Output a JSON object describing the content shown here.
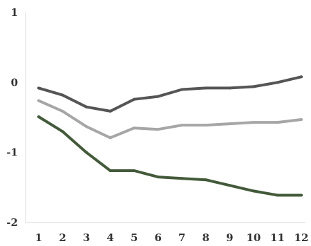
{
  "chart_data": {
    "type": "line",
    "title": "",
    "xlabel": "",
    "ylabel": "",
    "x": [
      1,
      2,
      3,
      4,
      5,
      6,
      7,
      8,
      9,
      10,
      11,
      12
    ],
    "x_tick_labels": [
      "1",
      "2",
      "3",
      "4",
      "5",
      "6",
      "7",
      "8",
      "9",
      "10",
      "11",
      "12"
    ],
    "y_ticks": [
      1,
      0,
      -1,
      -2
    ],
    "y_tick_labels": [
      "1",
      "0",
      "-1",
      "-2"
    ],
    "ylim": [
      -2,
      1
    ],
    "grid": false,
    "legend": "none",
    "series": [
      {
        "color": "#555555",
        "values": [
          -0.08,
          -0.18,
          -0.35,
          -0.41,
          -0.24,
          -0.2,
          -0.1,
          -0.08,
          -0.08,
          -0.06,
          0.0,
          0.08
        ]
      },
      {
        "color": "#a6a6a6",
        "values": [
          -0.26,
          -0.41,
          -0.63,
          -0.79,
          -0.65,
          -0.67,
          -0.61,
          -0.61,
          -0.59,
          -0.57,
          -0.57,
          -0.53
        ]
      },
      {
        "color": "#435a3a",
        "values": [
          -0.49,
          -0.7,
          -1.0,
          -1.26,
          -1.26,
          -1.35,
          -1.37,
          -1.39,
          -1.47,
          -1.55,
          -1.61,
          -1.61
        ]
      }
    ]
  }
}
